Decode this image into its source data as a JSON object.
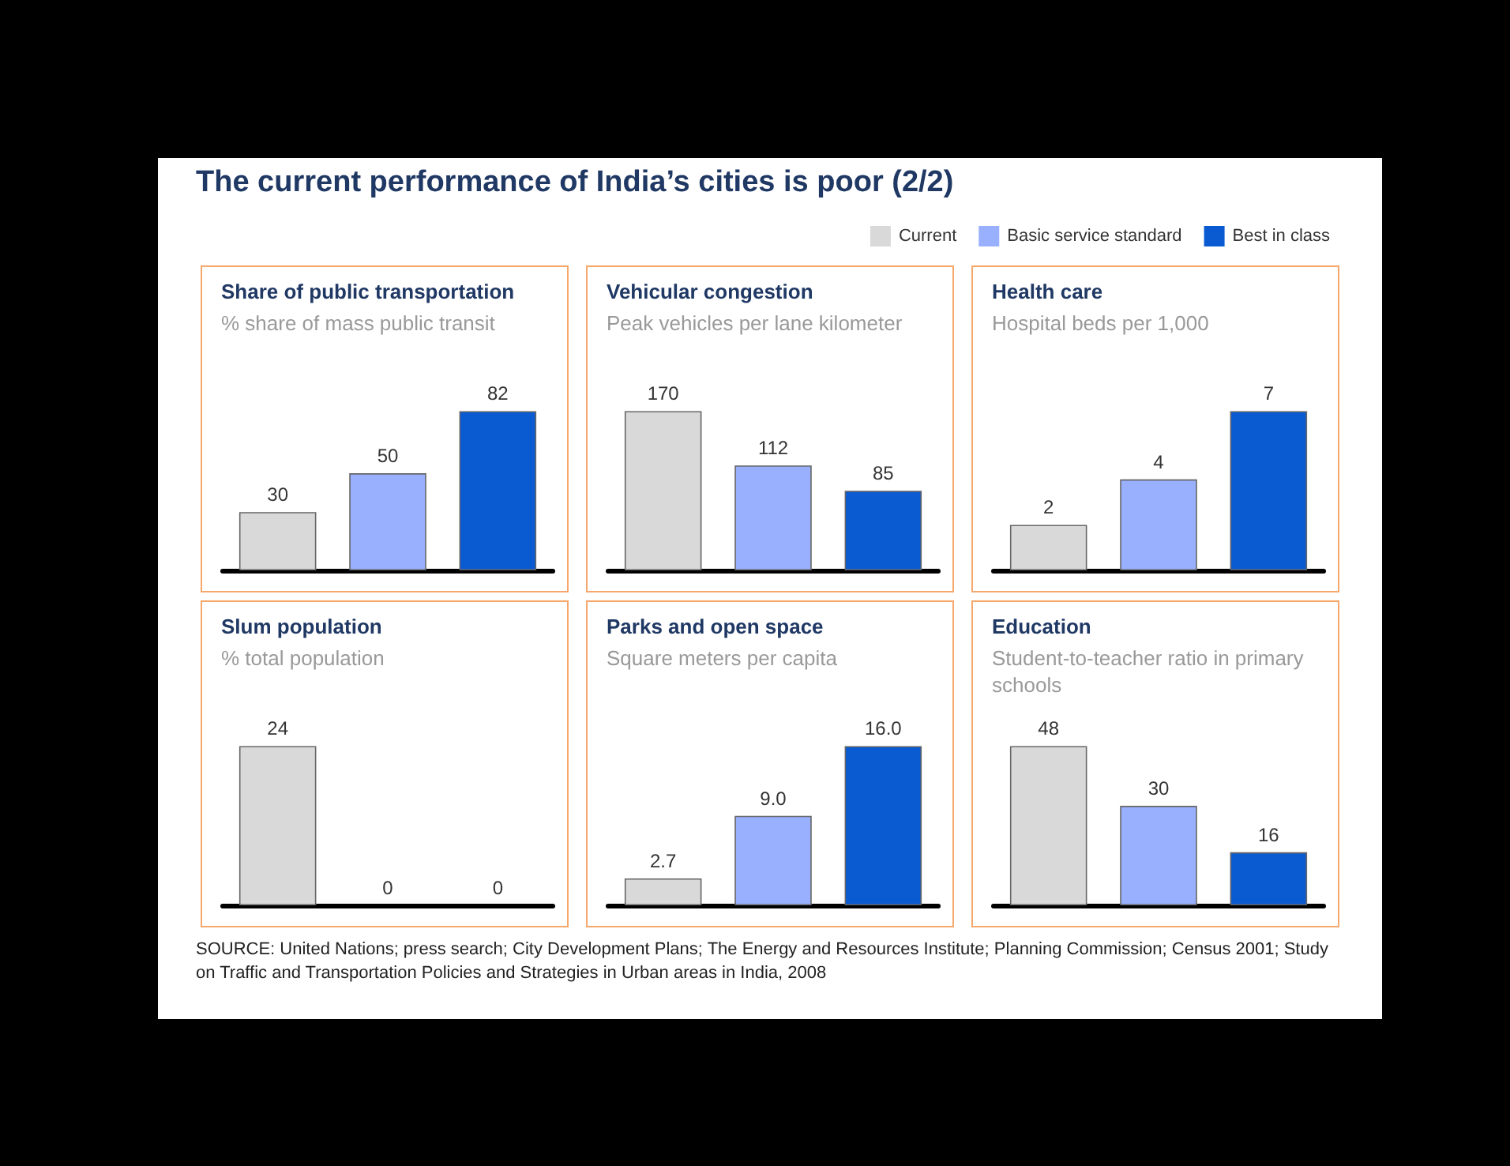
{
  "chart_data": [
    {
      "type": "other",
      "title": "The current performance of India’s cities is poor (2/2)"
    },
    {
      "type": "bar",
      "title": "Share of public transportation",
      "subtitle": "% share of mass public transit",
      "categories": [
        null,
        null,
        null
      ],
      "values": [
        30,
        50,
        82
      ],
      "colors": [
        "#d9d9d9",
        "#99b0ff",
        "#0a5ad2"
      ],
      "data_labels": true
    },
    {
      "type": "bar",
      "title": "Vehicular congestion",
      "subtitle": "Peak vehicles per lane kilometer",
      "categories": [
        null,
        null,
        null
      ],
      "values": [
        170,
        112,
        85
      ],
      "colors": [
        "#d9d9d9",
        "#99b0ff",
        "#0a5ad2"
      ],
      "data_labels": true
    },
    {
      "type": "bar",
      "title": "Health care",
      "subtitle": "Hospital beds per 1,000",
      "categories": [
        null,
        null,
        null
      ],
      "legend": "top",
      "stacked": true,
      "series": [
        {
          "name": "Current",
          "color": "#d9d9d9",
          "values": [
            2,
            0,
            0
          ],
          "value_labels": [
            "2",
            null,
            null
          ]
        },
        {
          "name": "Basic service standard",
          "color": "#99b0ff",
          "values": [
            0,
            4,
            0
          ],
          "value_labels": [
            null,
            "4",
            null
          ]
        },
        {
          "name": "Best in class",
          "color": "#0a5ad2",
          "values": [
            0,
            0,
            7
          ],
          "value_labels": [
            null,
            null,
            "7"
          ]
        }
      ]
    },
    {
      "type": "bar",
      "title": "Slum population",
      "subtitle": "% total population",
      "categories": [
        null,
        null,
        null
      ],
      "values": [
        24,
        0,
        0
      ],
      "colors": [
        "#d9d9d9",
        "#99b0ff",
        "#0a5ad2"
      ],
      "data_labels": true
    },
    {
      "type": "bar",
      "title": "Parks and open space",
      "subtitle": "Square meters per capita",
      "categories": [
        null,
        null,
        null
      ],
      "values": [
        2.7,
        9.0,
        16.0
      ],
      "value_labels": [
        "2.7",
        "9.0",
        "16.0"
      ],
      "colors": [
        "#d9d9d9",
        "#99b0ff",
        "#0a5ad2"
      ]
    },
    {
      "type": "bar",
      "title": "Education",
      "subtitle": "Student-to-teacher ratio in primary schools",
      "categories": [
        null,
        null,
        null
      ],
      "values": [
        48,
        30,
        16
      ],
      "colors": [
        "#d9d9d9",
        "#99b0ff",
        "#0a5ad2"
      ],
      "data_labels": true
    },
    {
      "type": "other",
      "annotations": [
        "SOURCE: United Nations; press search; City Development Plans; The Energy and Resources Institute; Planning Commission; Census 2001; Study on Traffic and Transportation Policies and Strategies in Urban areas in India, 2008"
      ]
    }
  ]
}
